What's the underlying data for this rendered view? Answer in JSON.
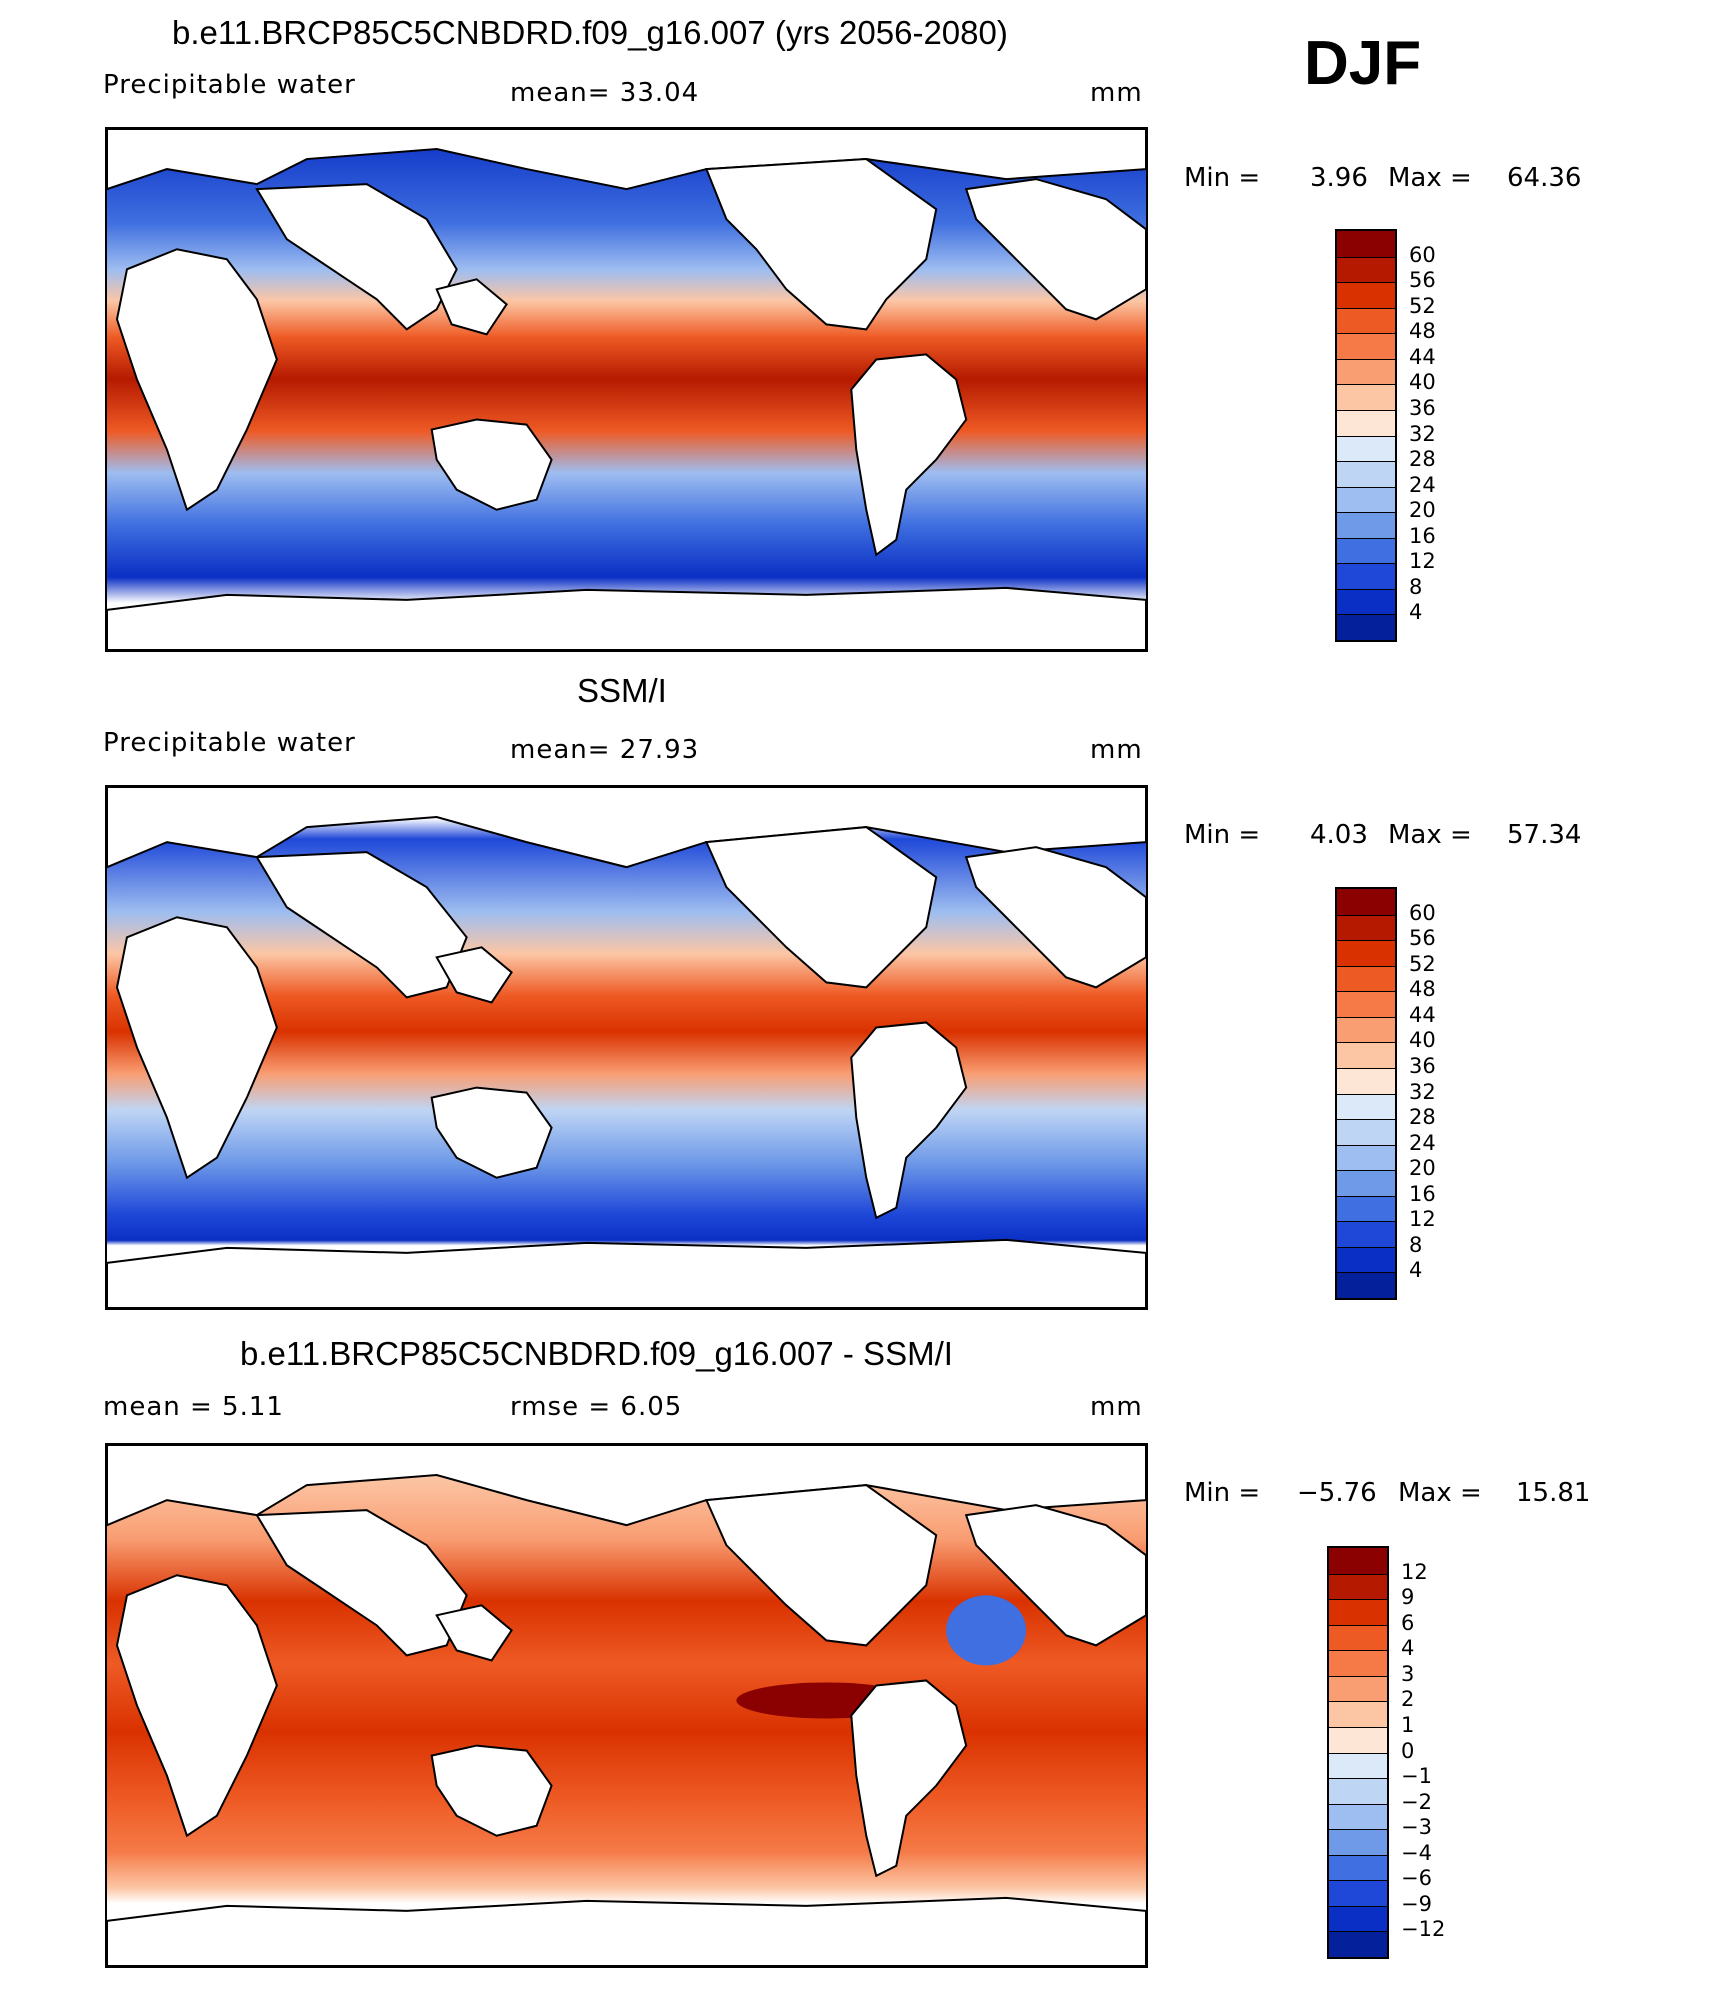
{
  "season": "DJF",
  "panels": [
    {
      "title": "b.e11.BRCP85C5CNBDRD.f09_g16.007 (yrs 2056-2080)",
      "variable": "Precipitable water",
      "stat1": "mean=  33.04",
      "stat2": "",
      "units": "mm",
      "min_label": "Min =",
      "min_value": "3.96",
      "max_label": "Max =",
      "max_value": "64.36",
      "colorbar_levels": [
        "60",
        "56",
        "52",
        "48",
        "44",
        "40",
        "36",
        "32",
        "28",
        "24",
        "20",
        "16",
        "12",
        "8",
        "4"
      ]
    },
    {
      "title": "SSM/I",
      "variable": "Precipitable water",
      "stat1": "mean=  27.93",
      "stat2": "",
      "units": "mm",
      "min_label": "Min =",
      "min_value": "4.03",
      "max_label": "Max =",
      "max_value": "57.34",
      "colorbar_levels": [
        "60",
        "56",
        "52",
        "48",
        "44",
        "40",
        "36",
        "32",
        "28",
        "24",
        "20",
        "16",
        "12",
        "8",
        "4"
      ]
    },
    {
      "title": "b.e11.BRCP85C5CNBDRD.f09_g16.007 - SSM/I",
      "variable": "",
      "stat1": "mean =   5.11",
      "stat2": "rmse =   6.05",
      "units": "mm",
      "min_label": "Min =",
      "min_value": "−5.76",
      "max_label": "Max =",
      "max_value": "15.81",
      "colorbar_levels": [
        "12",
        "9",
        "6",
        "4",
        "3",
        "2",
        "1",
        "0",
        "−1",
        "−2",
        "−3",
        "−4",
        "−6",
        "−9",
        "−12"
      ]
    }
  ],
  "colors": {
    "scale": [
      "#8b0000",
      "#b51a00",
      "#d93200",
      "#ee5a24",
      "#f57a47",
      "#f99d72",
      "#fcc6a5",
      "#fde6d6",
      "#dce9f8",
      "#bfd5f4",
      "#9ebdf0",
      "#6f9ae8",
      "#3f6fe0",
      "#1f48d8",
      "#0a2fc4",
      "#04209a"
    ],
    "land": "#ffffff",
    "coast": "#000000"
  }
}
